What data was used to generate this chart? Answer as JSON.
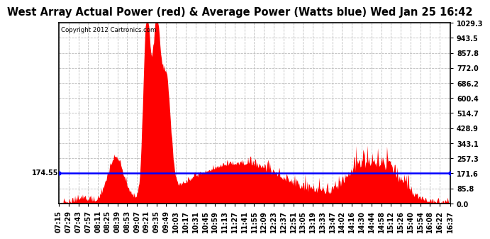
{
  "title": "West Array Actual Power (red) & Average Power (Watts blue) Wed Jan 25 16:42",
  "copyright_text": "Copyright 2012 Cartronics.com",
  "average_power": 174.55,
  "yticks": [
    0.0,
    85.8,
    171.6,
    257.3,
    343.1,
    428.9,
    514.7,
    600.4,
    686.2,
    772.0,
    857.8,
    943.5,
    1029.3
  ],
  "ymax": 1029.3,
  "ymin": 0.0,
  "fill_color": "#ff0000",
  "line_color": "#0000ff",
  "background_color": "#ffffff",
  "grid_color": "#bbbbbb",
  "title_fontsize": 10.5,
  "tick_fontsize": 7.0,
  "x_labels": [
    "07:15",
    "07:29",
    "07:43",
    "07:57",
    "08:11",
    "08:25",
    "08:39",
    "08:53",
    "09:07",
    "09:21",
    "09:35",
    "09:49",
    "10:03",
    "10:17",
    "10:31",
    "10:45",
    "10:59",
    "11:13",
    "11:27",
    "11:41",
    "11:55",
    "12:09",
    "12:23",
    "12:37",
    "12:51",
    "13:05",
    "13:19",
    "13:33",
    "13:47",
    "14:02",
    "14:16",
    "14:30",
    "14:44",
    "14:58",
    "15:12",
    "15:26",
    "15:40",
    "15:54",
    "16:08",
    "16:22",
    "16:37"
  ],
  "avg_label": "174.55"
}
